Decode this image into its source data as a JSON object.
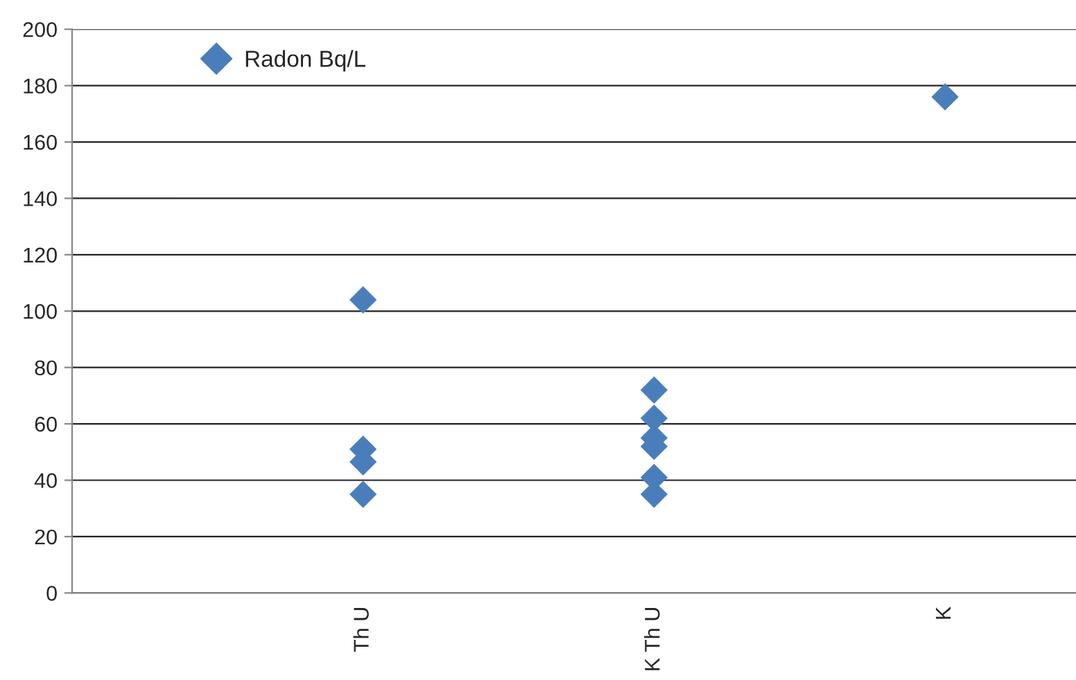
{
  "chart_data": {
    "type": "scatter",
    "categories": [
      null,
      "Th U",
      "K Th U",
      "K"
    ],
    "series": [
      {
        "name": "Radon Bq/L",
        "color": "#4a7ebb",
        "x": [
          "Th U",
          "Th U",
          "Th U",
          "Th U",
          "K Th U",
          "K Th U",
          "K Th U",
          "K Th U",
          "K Th U",
          "K Th U",
          "K"
        ],
        "values": [
          104,
          51,
          46.5,
          35,
          72,
          62,
          55,
          52,
          41,
          35,
          176
        ]
      }
    ],
    "ylim": [
      0,
      200
    ],
    "yticks": [
      0,
      20,
      40,
      60,
      80,
      100,
      120,
      140,
      160,
      180,
      200
    ],
    "grid": "y",
    "legend": "top left",
    "marker": "diamond"
  }
}
